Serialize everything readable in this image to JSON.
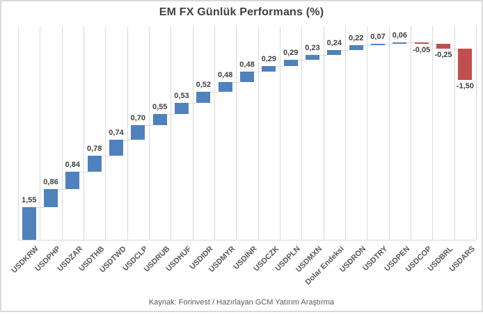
{
  "chart": {
    "source_note": "Kaynak: Forinvest / Hazırlayan GCM Yatırım Araştırma"
  },
  "chart_data": {
    "type": "bar",
    "subtype": "waterfall",
    "title": "EM FX Günlük Performans (%)",
    "categories": [
      "USDKRW",
      "USDPHP",
      "USDZAR",
      "USDTHB",
      "USDTWD",
      "USDCLP",
      "USDRUB",
      "USDHUF",
      "USDIDR",
      "USDMYR",
      "USDINR",
      "USDCZK",
      "USDPLN",
      "USDMXN",
      "Dolar Endeksi",
      "USDRON",
      "USDTRY",
      "USDPEN",
      "USDCOP",
      "USDBRL",
      "USDARS"
    ],
    "values": [
      1.55,
      0.86,
      0.84,
      0.78,
      0.74,
      0.7,
      0.55,
      0.53,
      0.52,
      0.48,
      0.48,
      0.29,
      0.29,
      0.23,
      0.24,
      0.22,
      0.07,
      0.06,
      -0.05,
      -0.25,
      -1.5
    ],
    "value_labels": [
      "1,55",
      "0,86",
      "0,84",
      "0,78",
      "0,74",
      "0,70",
      "0,55",
      "0,53",
      "0,52",
      "0,48",
      "0,48",
      "0,29",
      "0,29",
      "0,23",
      "0,24",
      "0,22",
      "0,07",
      "0,06",
      "-0,05",
      "-0,25",
      "-1,50"
    ],
    "xlabel": "",
    "ylabel": "",
    "ylim": [
      0,
      10.2
    ],
    "grid": "vertical-only",
    "legend": "none",
    "positive_color": "#4f81bd",
    "negative_color": "#c0504d",
    "gridline_color": "#d9d9d9",
    "label_color": "#404040",
    "axis_label_color": "#595959"
  }
}
